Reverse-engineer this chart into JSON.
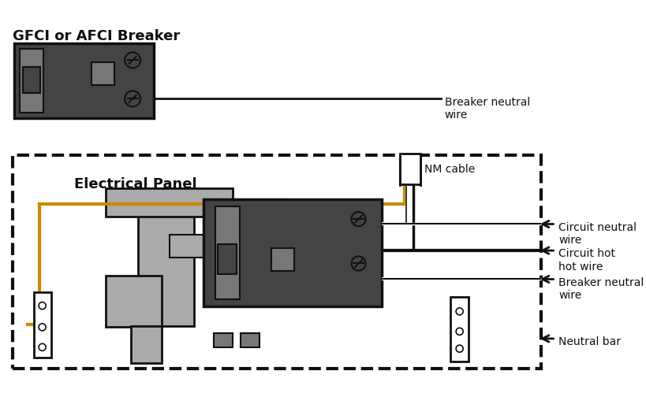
{
  "bg_color": "#ffffff",
  "title_breaker": "GFCI or AFCI Breaker",
  "title_panel": "Electrical Panel",
  "label_breaker_neutral_top": "Breaker neutral\nwire",
  "label_nm_cable": "NM cable",
  "label_circuit_neutral": "Circuit neutral\nwire",
  "label_circuit_hot": "Circuit hot\nhot wire",
  "label_breaker_neutral2": "Breaker neutral\nwire",
  "label_neutral_bar": "Neutral bar",
  "gray_dark": "#444444",
  "gray_light": "#aaaaaa",
  "gray_mid": "#777777",
  "black": "#111111",
  "orange": "#cc8800",
  "white": "#ffffff"
}
